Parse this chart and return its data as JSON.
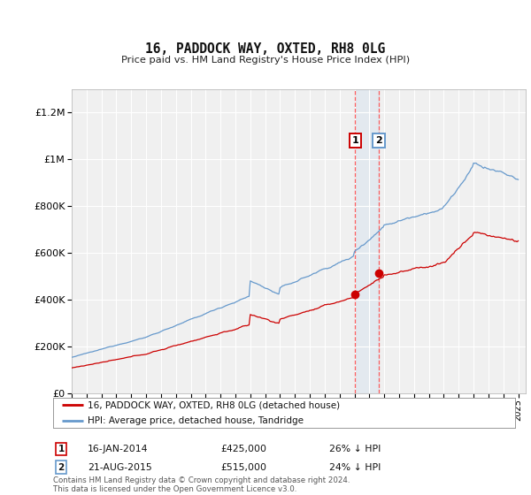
{
  "title": "16, PADDOCK WAY, OXTED, RH8 0LG",
  "subtitle": "Price paid vs. HM Land Registry's House Price Index (HPI)",
  "legend_line1": "16, PADDOCK WAY, OXTED, RH8 0LG (detached house)",
  "legend_line2": "HPI: Average price, detached house, Tandridge",
  "transaction1_date": "16-JAN-2014",
  "transaction1_price": 425000,
  "transaction1_label": "26% ↓ HPI",
  "transaction2_date": "21-AUG-2015",
  "transaction2_price": 515000,
  "transaction2_label": "24% ↓ HPI",
  "footnote1": "Contains HM Land Registry data © Crown copyright and database right 2024.",
  "footnote2": "This data is licensed under the Open Government Licence v3.0.",
  "hpi_color": "#6699cc",
  "price_color": "#cc0000",
  "vline_color": "#ff4444",
  "ylim": [
    0,
    1300000
  ],
  "yticks": [
    0,
    200000,
    400000,
    600000,
    800000,
    1000000,
    1200000
  ],
  "xlim_start": 1995,
  "xlim_end": 2025.5,
  "background_color": "#ffffff",
  "plot_bg_color": "#f0f0f0"
}
